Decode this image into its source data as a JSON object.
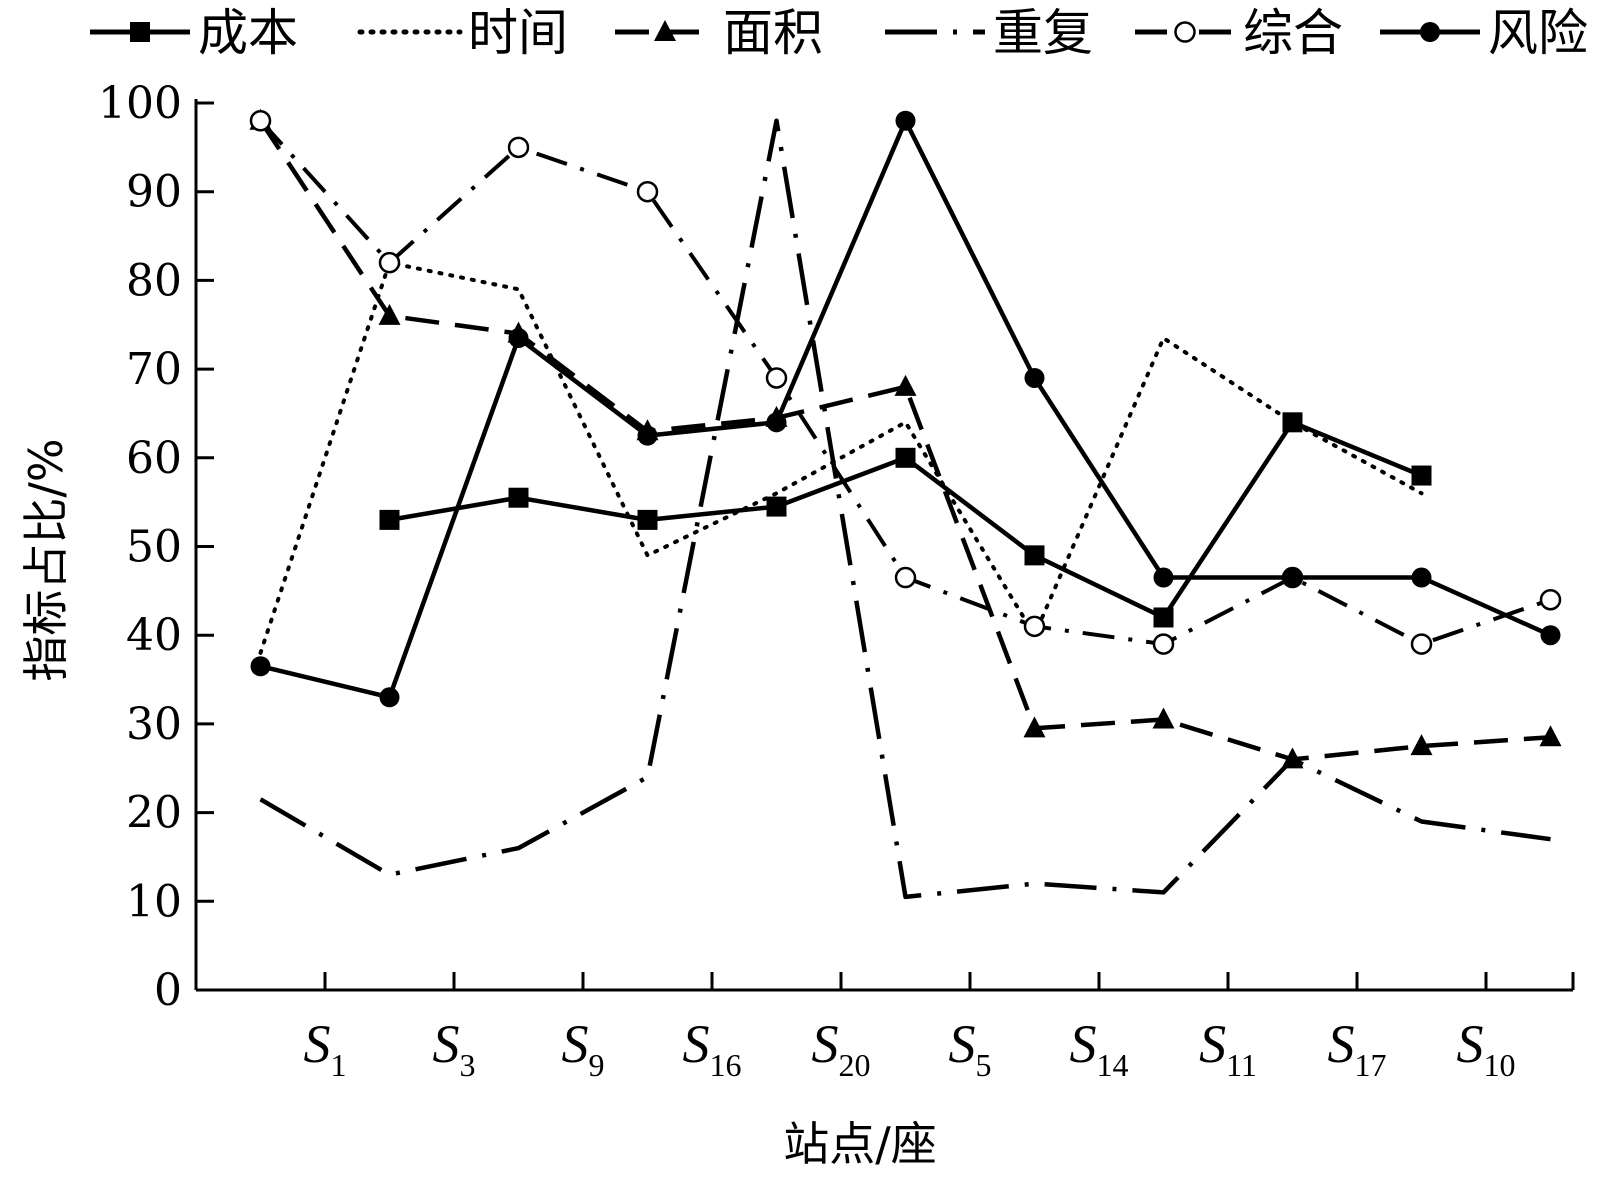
{
  "chart_data": {
    "type": "line",
    "xlabel": "站点/座",
    "ylabel": "指标占比/%",
    "ylim": [
      0,
      100
    ],
    "yticks": [
      0,
      10,
      20,
      30,
      40,
      50,
      60,
      70,
      80,
      90,
      100
    ],
    "categories": [
      {
        "base": "S",
        "sub": "1"
      },
      {
        "base": "S",
        "sub": "3"
      },
      {
        "base": "S",
        "sub": "9"
      },
      {
        "base": "S",
        "sub": "16"
      },
      {
        "base": "S",
        "sub": "20"
      },
      {
        "base": "S",
        "sub": "5"
      },
      {
        "base": "S",
        "sub": "14"
      },
      {
        "base": "S",
        "sub": "11"
      },
      {
        "base": "S",
        "sub": "17"
      },
      {
        "base": "S",
        "sub": "10"
      }
    ],
    "grid": false,
    "legend_position": "top",
    "series": [
      {
        "name": "成本",
        "style": "solid",
        "marker": "square",
        "x": [
          1.5,
          2.5,
          3.5,
          4.5,
          5.5,
          6.5,
          7.5,
          8.5,
          9.5
        ],
        "values": [
          53,
          55.5,
          53,
          54.5,
          60,
          49,
          42,
          64,
          58
        ]
      },
      {
        "name": "时间",
        "style": "dotted",
        "marker": "none",
        "x": [
          0.5,
          1.5,
          2.5,
          3.5,
          4.5,
          5.5,
          6.5,
          7.5,
          8.5,
          9.5
        ],
        "values": [
          38,
          82,
          79,
          49,
          56,
          64,
          40,
          73.5,
          64,
          56
        ]
      },
      {
        "name": "面积",
        "style": "dashed",
        "marker": "triangle",
        "x": [
          0.5,
          1.5,
          2.5,
          3.5,
          4.5,
          5.5,
          6.5,
          7.5,
          8.5,
          9.5,
          10.5
        ],
        "values": [
          98,
          76,
          74,
          63,
          64.5,
          68,
          29.5,
          30.5,
          26,
          27.5,
          28.5
        ]
      },
      {
        "name": "重复",
        "style": "longdashdot",
        "marker": "none",
        "x": [
          0.5,
          1.5,
          2.5,
          3.5,
          4.5,
          5.5,
          6.5,
          7.5,
          8.5,
          9.5,
          10.5
        ],
        "values": [
          21.5,
          13,
          16,
          24,
          98,
          10.5,
          12,
          11,
          26,
          19,
          17
        ]
      },
      {
        "name": "综合",
        "style": "dashdot",
        "marker": "circle-open",
        "x": [
          0.5,
          1.5,
          2.5,
          3.5,
          4.5,
          5.5,
          6.5,
          7.5,
          8.5,
          9.5,
          10.5
        ],
        "values": [
          98,
          82,
          95,
          90,
          69,
          46.5,
          41,
          39,
          46.5,
          39,
          44
        ]
      },
      {
        "name": "风险",
        "style": "solid",
        "marker": "circle-filled",
        "x": [
          0.5,
          1.5,
          2.5,
          3.5,
          4.5,
          5.5,
          6.5,
          7.5,
          8.5,
          9.5,
          10.5
        ],
        "values": [
          36.5,
          33,
          73.5,
          62.5,
          64,
          98,
          69,
          46.5,
          46.5,
          46.5,
          40
        ]
      }
    ]
  }
}
